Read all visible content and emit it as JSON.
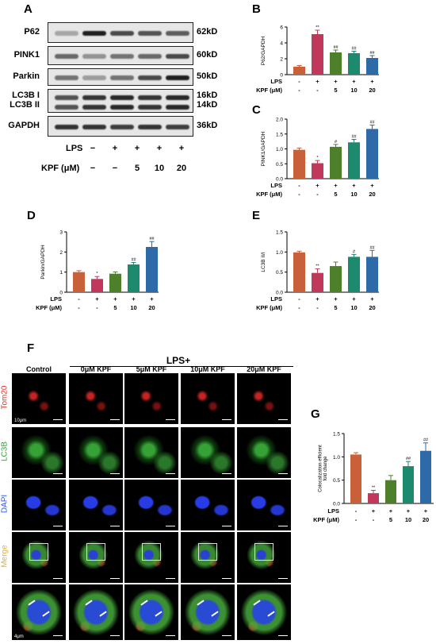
{
  "panels": {
    "A": "A",
    "B": "B",
    "C": "C",
    "D": "D",
    "E": "E",
    "F": "F",
    "G": "G"
  },
  "western_blot": {
    "bands": [
      {
        "label": "P62",
        "size": "62kD"
      },
      {
        "label": "PINK1",
        "size": "60kD"
      },
      {
        "label": "Parkin",
        "size": "50kD"
      },
      {
        "label": "LC3B I",
        "label2": "LC3B II",
        "size": "16kD",
        "size2": "14kD"
      },
      {
        "label": "GAPDH",
        "size": "36kD"
      }
    ],
    "lps_label": "LPS",
    "lps_values": [
      "−",
      "+",
      "+",
      "+",
      "+"
    ],
    "kpf_label": "KPF (μM)",
    "kpf_values": [
      "−",
      "−",
      "5",
      "10",
      "20"
    ]
  },
  "treatment_rows": {
    "lps_label": "LPS",
    "lps_values": [
      "-",
      "+",
      "+",
      "+",
      "+"
    ],
    "kpf_label": "KPF (μM)",
    "kpf_values": [
      "-",
      "-",
      "5",
      "10",
      "20"
    ]
  },
  "colors": [
    "#c8603a",
    "#c0385c",
    "#4e7f2a",
    "#1d8a6e",
    "#2e6aa8"
  ],
  "chart_data": [
    {
      "panel": "B",
      "type": "bar",
      "ylabel": "P62/GAPDH",
      "ylim": [
        0,
        6
      ],
      "yticks": [
        0,
        2,
        4,
        6
      ],
      "values": [
        1.0,
        5.1,
        2.8,
        2.7,
        2.1
      ],
      "errors": [
        0.15,
        0.5,
        0.3,
        0.25,
        0.3
      ],
      "annotations": [
        "",
        "**",
        "##",
        "##",
        "##"
      ]
    },
    {
      "panel": "C",
      "type": "bar",
      "ylabel": "PINK1/GAPDH",
      "ylim": [
        0,
        2.0
      ],
      "yticks": [
        0.0,
        0.5,
        1.0,
        1.5,
        2.0
      ],
      "values": [
        0.97,
        0.52,
        1.07,
        1.22,
        1.67
      ],
      "errors": [
        0.06,
        0.09,
        0.08,
        0.1,
        0.13
      ],
      "annotations": [
        "",
        "*",
        "#",
        "##",
        "##"
      ]
    },
    {
      "panel": "D",
      "type": "bar",
      "ylabel": "Parkin/GAPDH",
      "ylim": [
        0,
        3
      ],
      "yticks": [
        0,
        1,
        2,
        3
      ],
      "values": [
        1.0,
        0.66,
        0.92,
        1.38,
        2.25
      ],
      "errors": [
        0.07,
        0.12,
        0.09,
        0.1,
        0.27
      ],
      "annotations": [
        "",
        "*",
        "",
        "##",
        "##"
      ]
    },
    {
      "panel": "E",
      "type": "bar",
      "ylabel": "LC3B II/I",
      "ylim": [
        0,
        1.5
      ],
      "yticks": [
        0.0,
        0.5,
        1.0,
        1.5
      ],
      "values": [
        0.99,
        0.48,
        0.65,
        0.88,
        0.88
      ],
      "errors": [
        0.03,
        0.1,
        0.1,
        0.06,
        0.16
      ],
      "annotations": [
        "",
        "**",
        "",
        "#",
        "##"
      ]
    },
    {
      "panel": "G",
      "type": "bar",
      "ylabel": "Colocalization efficient fold change",
      "ylim": [
        0,
        1.5
      ],
      "yticks": [
        0.0,
        0.5,
        1.0,
        1.5
      ],
      "values": [
        1.05,
        0.22,
        0.5,
        0.8,
        1.13
      ],
      "errors": [
        0.04,
        0.06,
        0.1,
        0.1,
        0.17
      ],
      "annotations": [
        "",
        "**",
        "",
        "##",
        "##"
      ]
    }
  ],
  "microscopy": {
    "group_label": "LPS+",
    "columns": [
      "Control",
      "0μM KPF",
      "5μM KPF",
      "10μM KPF",
      "20μM KPF"
    ],
    "rows": [
      "Tom20",
      "LC3B",
      "DAPI",
      "Merge"
    ],
    "row_colors": [
      "#e0302a",
      "#27a52f",
      "#2a55d8",
      "#e8b020"
    ],
    "scale_top": "10μm",
    "scale_bottom": "4μm"
  }
}
